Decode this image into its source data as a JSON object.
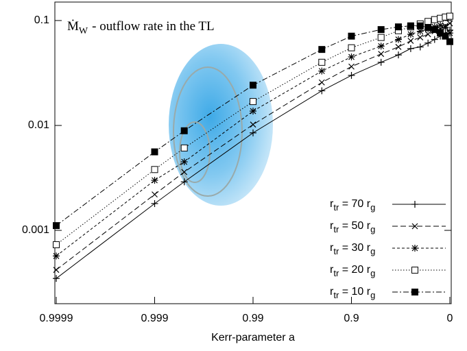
{
  "chart_data": {
    "type": "line",
    "annotation": {
      "symbol": "Ṁ",
      "subscript": "W",
      "text": "- outflow rate in the TL"
    },
    "x_label": "Kerr-parameter a",
    "x_scale": "log(1-a)",
    "y_scale": "log",
    "xlim": [
      0.9999,
      0
    ],
    "xticks": [
      0.9999,
      0.999,
      0.99,
      0.9,
      0
    ],
    "ylim": [
      0.0002,
      0.15
    ],
    "yticks": [
      0.001,
      0.01,
      0.1
    ],
    "legend": "bottom-right",
    "x": [
      0.9999,
      0.999,
      0.998,
      0.99,
      0.95,
      0.9,
      0.8,
      0.7,
      0.6,
      0.5,
      0.4,
      0.3,
      0.2,
      0.1,
      0
    ],
    "series": [
      {
        "name": [
          "r",
          "tr",
          " = 70 r",
          "g"
        ],
        "color": "#000000",
        "marker": "plus",
        "dash": "solid",
        "values": [
          0.000348,
          0.0018,
          0.0029,
          0.0085,
          0.0214,
          0.03,
          0.04,
          0.047,
          0.054,
          0.056,
          0.061,
          0.066,
          0.071,
          0.076,
          0.081
        ]
      },
      {
        "name": [
          "r",
          "tr",
          " = 50 r",
          "g"
        ],
        "color": "#000000",
        "marker": "cross",
        "dash": "dashed",
        "values": [
          0.00042,
          0.0022,
          0.0036,
          0.0102,
          0.0257,
          0.0364,
          0.048,
          0.056,
          0.064,
          0.069,
          0.074,
          0.079,
          0.083,
          0.089,
          0.094
        ]
      },
      {
        "name": [
          "r",
          "tr",
          " = 30 r",
          "g"
        ],
        "color": "#000000",
        "marker": "star",
        "dash": "short-dashed",
        "values": [
          0.00057,
          0.003,
          0.0045,
          0.0137,
          0.033,
          0.045,
          0.057,
          0.066,
          0.074,
          0.079,
          0.083,
          0.087,
          0.09,
          0.086,
          0.076
        ]
      },
      {
        "name": [
          "r",
          "tr",
          " = 20 r",
          "g"
        ],
        "color": "#000000",
        "marker": "open-square",
        "dash": "dotted",
        "values": [
          0.00073,
          0.0038,
          0.0061,
          0.0169,
          0.04,
          0.055,
          0.069,
          0.08,
          0.087,
          0.093,
          0.098,
          0.102,
          0.105,
          0.108,
          0.11
        ]
      },
      {
        "name": [
          "r",
          "tr",
          " = 10 r",
          "g"
        ],
        "color": "#000000",
        "marker": "filled-square",
        "dash": "dash-dot",
        "values": [
          0.00111,
          0.0056,
          0.0089,
          0.0242,
          0.053,
          0.071,
          0.082,
          0.087,
          0.089,
          0.089,
          0.086,
          0.082,
          0.077,
          0.071,
          0.063
        ]
      }
    ]
  }
}
